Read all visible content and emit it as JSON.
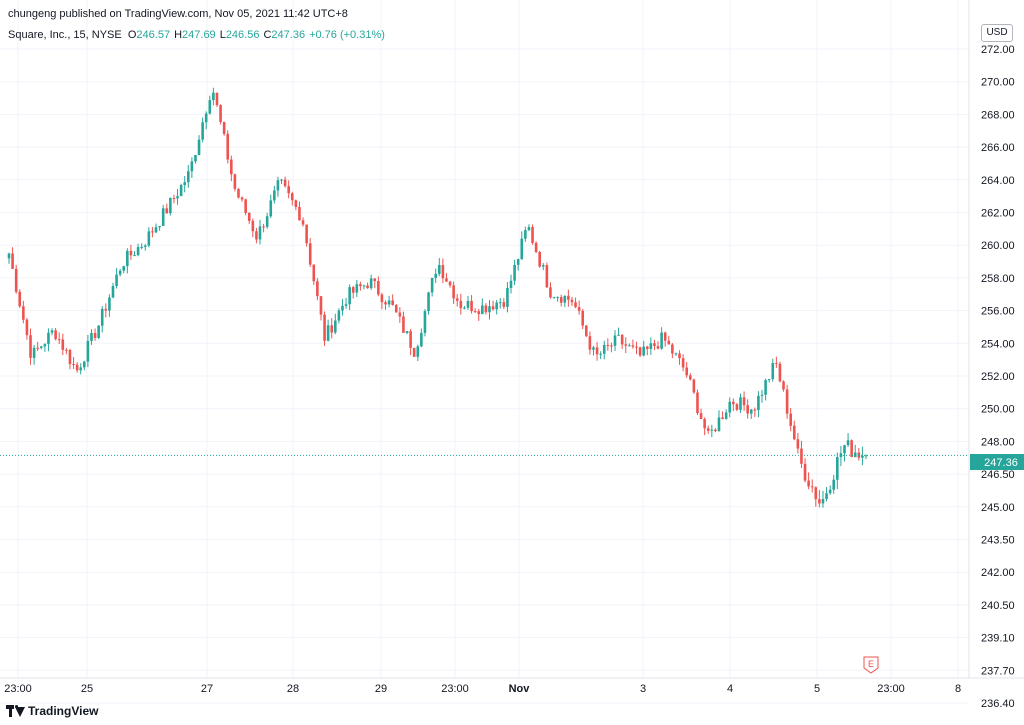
{
  "header": {
    "publisher_line": "chungeng published on TradingView.com, Nov 05, 2021 11:42 UTC+8",
    "symbol": "Square, Inc., 15, NYSE",
    "open_label": "O",
    "open": "246.57",
    "high_label": "H",
    "high": "247.69",
    "low_label": "L",
    "low": "246.56",
    "close_label": "C",
    "close": "247.36",
    "change": "+0.76 (+0.31%)"
  },
  "currency": "USD",
  "footer": {
    "brand": "TradingView"
  },
  "earnings_marker": "E",
  "colors": {
    "up": "#26a69a",
    "down": "#ef5350",
    "grid": "#f0f3fa",
    "last_price": "#26a69a"
  },
  "chart_data": {
    "type": "candlestick",
    "interval": "15",
    "y_ticks": [
      "272.00",
      "270.00",
      "268.00",
      "266.00",
      "264.00",
      "262.00",
      "260.00",
      "258.00",
      "256.00",
      "254.00",
      "252.00",
      "250.00",
      "248.00",
      "246.50",
      "245.00",
      "243.50",
      "242.00",
      "240.50",
      "239.10",
      "237.70",
      "236.40"
    ],
    "x_ticks": [
      "23:00",
      "25",
      "27",
      "28",
      "29",
      "23:00",
      "Nov",
      "3",
      "4",
      "5",
      "23:00",
      "8"
    ],
    "last_price": "247.36",
    "keypoints": [
      [
        "22 23:00",
        259.5
      ],
      [
        "25 open",
        253.2
      ],
      [
        "25 mid",
        254.8
      ],
      [
        "25 late",
        252.3
      ],
      [
        "26 open",
        255.2
      ],
      [
        "26 mid",
        258.9
      ],
      [
        "26 late",
        260.2
      ],
      [
        "26 close",
        262.2
      ],
      [
        "27 rally",
        264.4
      ],
      [
        "27 peak",
        269.8
      ],
      [
        "27 drop",
        263.5
      ],
      [
        "27 low",
        260.5
      ],
      [
        "27 recovery",
        263.8
      ],
      [
        "28 open",
        261.7
      ],
      [
        "28 low",
        254.3
      ],
      [
        "28 late",
        256.9
      ],
      [
        "28 high",
        257.8
      ],
      [
        "28 drop",
        256.2
      ],
      [
        "28 close",
        253.5
      ],
      [
        "29 open",
        259.0
      ],
      [
        "29 mid",
        256.4
      ],
      [
        "29 late",
        256.2
      ],
      [
        "29 23:00",
        256.7
      ],
      [
        "29 spike",
        261.2
      ],
      [
        "Nov 1 open",
        257.2
      ],
      [
        "Nov 1 mid",
        256.6
      ],
      [
        "Nov 1 late",
        253.1
      ],
      [
        "Nov 2 open",
        254.2
      ],
      [
        "Nov 2 mid",
        253.2
      ],
      [
        "Nov 2 late",
        254.3
      ],
      [
        "Nov 3 open",
        252.3
      ],
      [
        "Nov 3 mid",
        248.2
      ],
      [
        "Nov 4 open",
        250.5
      ],
      [
        "Nov 4 mid",
        250.0
      ],
      [
        "Nov 4 late",
        252.8
      ],
      [
        "Nov 5 open",
        247.2
      ],
      [
        "Nov 5 low",
        245.1
      ],
      [
        "Nov 5 mid",
        247.8
      ],
      [
        "Nov 5 close",
        247.36
      ]
    ]
  }
}
